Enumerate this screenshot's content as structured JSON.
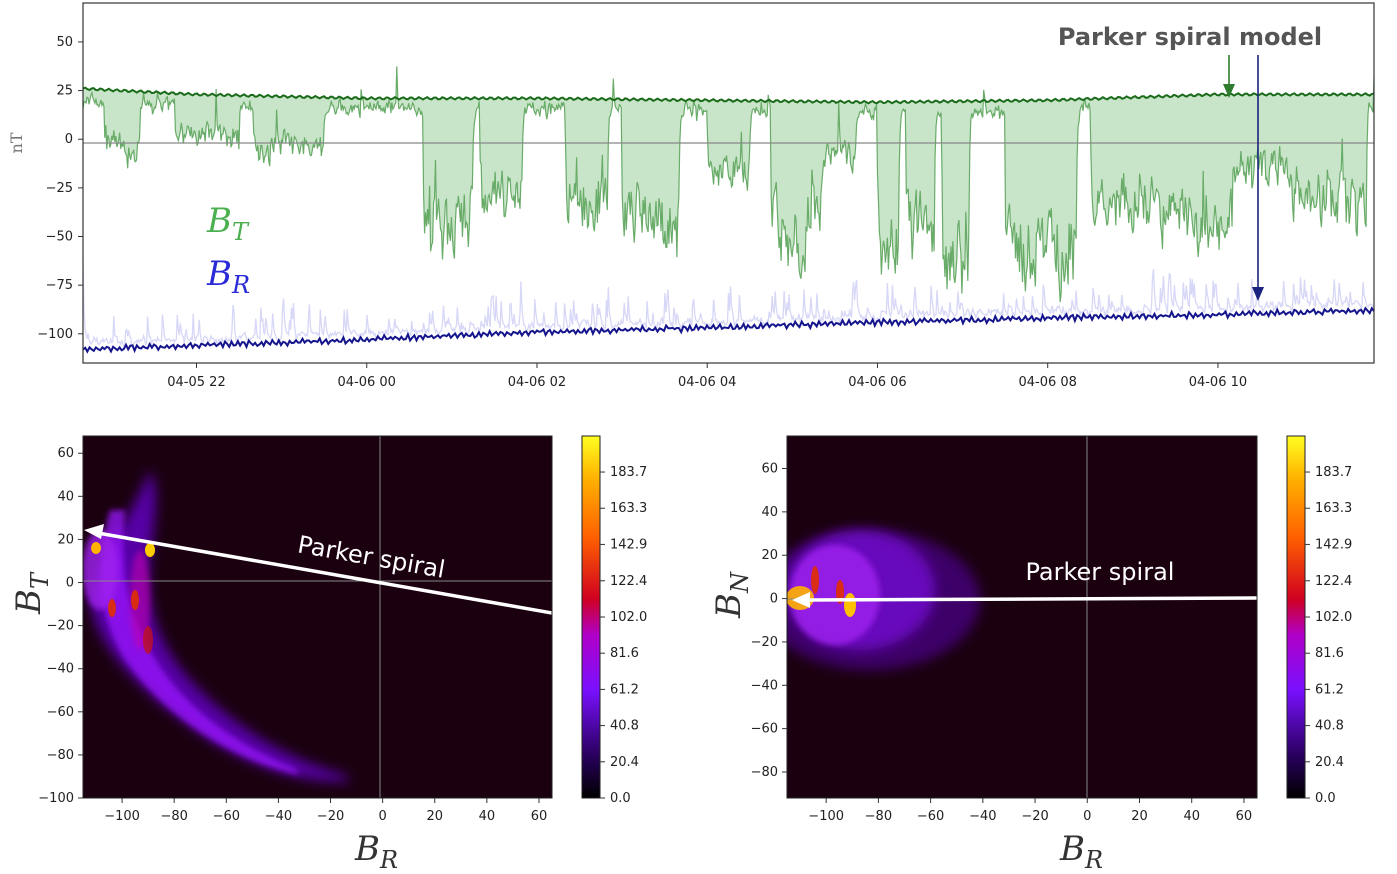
{
  "colors": {
    "bt_fill": "#9ccf9c",
    "bt_raw": "#4a9a4a",
    "bt_model": "#1a6b1a",
    "br_raw": "#b7b7f0",
    "br_model": "#14148c",
    "annotation_text": "#555555",
    "heatmap_bg": "#1b0010"
  },
  "chart_data": [
    {
      "type": "line",
      "ylabel": "nT",
      "ylim": [
        -115,
        70
      ],
      "yticks": [
        50,
        25,
        0,
        -25,
        -50,
        -75,
        -100
      ],
      "x_ticks": [
        "04-05 22",
        "04-06 00",
        "04-06 02",
        "04-06 04",
        "04-06 06",
        "04-06 08",
        "04-06 10"
      ],
      "x_range_hours": [
        "04-05 20:40",
        "04-06 11:50"
      ],
      "series": [
        {
          "name": "B_T",
          "label_base": "B",
          "label_sub": "T",
          "color": "#4a9a4a",
          "model_values": {
            "04-05 20:40": 26,
            "04-05 22": 23,
            "04-06 00": 21,
            "04-06 02": 21,
            "04-06 04": 20,
            "04-06 06": 19,
            "04-06 08": 20,
            "04-06 10": 23,
            "04-06 11:50": 23
          },
          "measured_typical_range": [
            -90,
            65
          ]
        },
        {
          "name": "B_R",
          "label_base": "B",
          "label_sub": "R",
          "color": "#14148c",
          "model_values": {
            "04-05 20:40": -108,
            "04-05 22": -106,
            "04-06 00": -103,
            "04-06 02": -99,
            "04-06 04": -97,
            "04-06 06": -94,
            "04-06 08": -92,
            "04-06 10": -90,
            "04-06 11:50": -88
          },
          "measured_typical_range": [
            -110,
            -70
          ]
        }
      ],
      "annotations": [
        "Parker spiral model"
      ],
      "grid": false
    },
    {
      "type": "heatmap",
      "xlabel_base": "B",
      "xlabel_sub": "R",
      "ylabel_base": "B",
      "ylabel_sub": "T",
      "xlim": [
        -115,
        65
      ],
      "ylim": [
        -100,
        68
      ],
      "xticks": [
        -100,
        -80,
        -60,
        -40,
        -20,
        0,
        20,
        40,
        60
      ],
      "yticks": [
        60,
        40,
        20,
        0,
        -20,
        -40,
        -60,
        -80,
        -100
      ],
      "colorbar_ticks": [
        "183.7",
        "163.3",
        "142.9",
        "122.4",
        "102.0",
        "81.6",
        "61.2",
        "40.8",
        "20.4",
        "0.0"
      ],
      "colorbar_range": [
        0,
        204
      ],
      "annotation": "Parker spiral",
      "parker_line": {
        "from": [
          65,
          -14
        ],
        "to": [
          -113,
          25
        ]
      }
    },
    {
      "type": "heatmap",
      "xlabel_base": "B",
      "xlabel_sub": "R",
      "ylabel_base": "B",
      "ylabel_sub": "N",
      "xlim": [
        -115,
        65
      ],
      "ylim": [
        -92,
        75
      ],
      "xticks": [
        -100,
        -80,
        -60,
        -40,
        -20,
        0,
        20,
        40,
        60
      ],
      "yticks": [
        60,
        40,
        20,
        0,
        -20,
        -40,
        -60,
        -80
      ],
      "colorbar_ticks": [
        "183.7",
        "163.3",
        "142.9",
        "122.4",
        "102.0",
        "81.6",
        "61.2",
        "40.8",
        "20.4",
        "0.0"
      ],
      "colorbar_range": [
        0,
        204
      ],
      "annotation": "Parker spiral",
      "parker_line": {
        "from": [
          65,
          0
        ],
        "to": [
          -113,
          0
        ]
      }
    }
  ]
}
